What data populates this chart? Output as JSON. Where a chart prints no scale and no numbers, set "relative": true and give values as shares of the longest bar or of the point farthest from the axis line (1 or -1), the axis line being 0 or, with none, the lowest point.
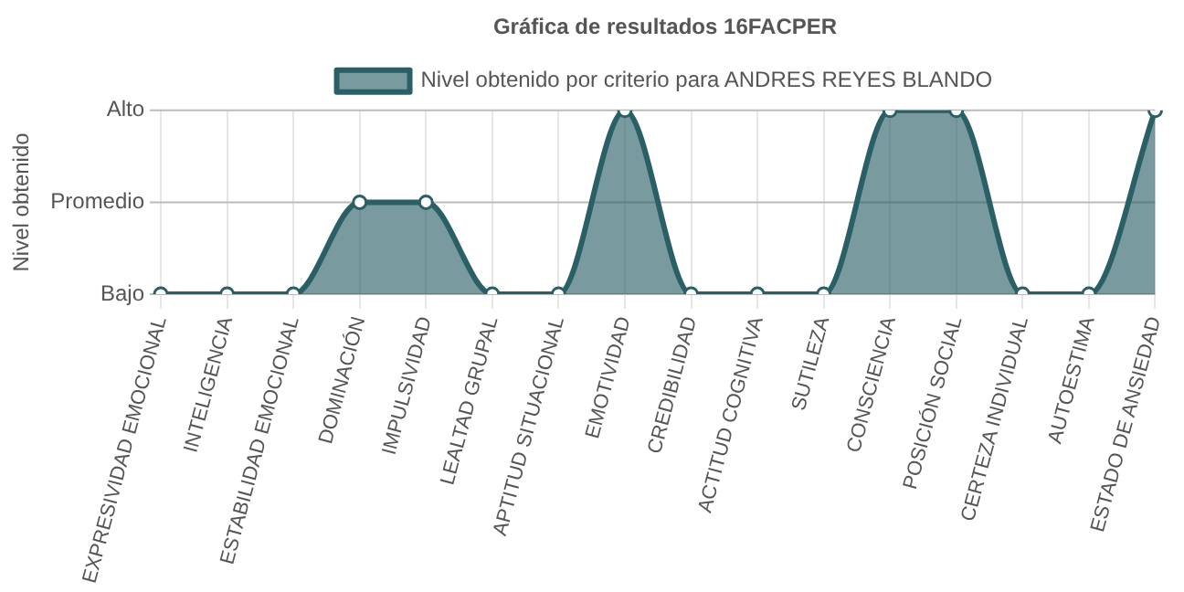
{
  "chart_data": {
    "type": "area",
    "title": "Gráfica de resultados 16FACPER",
    "ylabel": "Nivel obtenido",
    "relative": true,
    "categories": [
      "EXPRESIVIDAD EMOCIONAL",
      "INTELIGENCIA",
      "ESTABILIDAD EMOCIONAL",
      "DOMINACIÓN",
      "IMPULSIVIDAD",
      "LEALTAD GRUPAL",
      "APTITUD SITUACIONAL",
      "EMOTIVIDAD",
      "CREDIBILIDAD",
      "ACTITUD COGNITIVA",
      "SUTILEZA",
      "CONSCIENCIA",
      "POSICIÓN SOCIAL",
      "CERTEZA INDIVIDUAL",
      "AUTOESTIMA",
      "ESTADO DE ANSIEDAD"
    ],
    "series": [
      {
        "name": "Nivel obtenido por criterio para ANDRES REYES BLANDO",
        "color": "#2a5f66",
        "values": [
          0,
          0,
          0,
          0.5,
          0.5,
          0,
          0,
          1,
          0,
          0,
          0,
          1,
          1,
          0,
          0,
          1
        ]
      }
    ],
    "ref_lines": [
      {
        "axis": "y",
        "value": 0,
        "label": "Bajo",
        "color": "#bbbbbb"
      },
      {
        "axis": "y",
        "value": 0.5,
        "label": "Promedio",
        "color": "#bbbbbb"
      },
      {
        "axis": "y",
        "value": 1,
        "label": "Alto",
        "color": "#bbbbbb"
      }
    ],
    "grid": "x",
    "legend": "top",
    "marker": "circle",
    "line_style": "solid"
  }
}
